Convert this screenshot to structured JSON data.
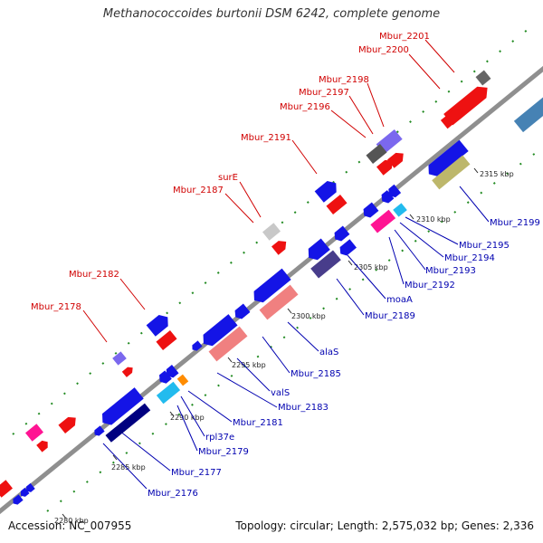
{
  "title": "Methanococcoides burtonii DSM 6242, complete genome",
  "footer": {
    "accession": "Accession: NC_007955",
    "summary": "Topology: circular; Length: 2,575,032 bp; Genes: 2,336"
  },
  "colors": {
    "backbone": "#8f8f8f",
    "plus_label": "#d00000",
    "minus_label": "#0000b0",
    "red": "#ee1111",
    "blue": "#1414e6",
    "purple": "#7b68ee",
    "gray": "#666666",
    "lightgray": "#c8c8c8",
    "pink": "#ff1493",
    "cyan": "#22bbee",
    "orange": "#ff8c00",
    "salmon": "#f08080",
    "khaki": "#bdb76b",
    "slateblue": "#483d8b",
    "navy": "#000080",
    "steelblue": "#4682b4",
    "tick": "#228b22"
  },
  "ticks": [
    "2280 kbp",
    "2285 kbp",
    "2290 kbp",
    "2295 kbp",
    "2300 kbp",
    "2305 kbp",
    "2310 kbp",
    "2315 kbp"
  ],
  "labels_plus": [
    "Mbur_2201",
    "Mbur_2200",
    "Mbur_2198",
    "Mbur_2197",
    "Mbur_2196",
    "Mbur_2191",
    "surE",
    "Mbur_2187",
    "Mbur_2182",
    "Mbur_2178"
  ],
  "labels_minus": [
    "Mbur_2199",
    "Mbur_2195",
    "Mbur_2194",
    "Mbur_2193",
    "Mbur_2192",
    "moaA",
    "Mbur_2189",
    "alaS",
    "Mbur_2185",
    "valS",
    "Mbur_2183",
    "Mbur_2181",
    "rpl37e",
    "Mbur_2179",
    "Mbur_2177",
    "Mbur_2176"
  ]
}
